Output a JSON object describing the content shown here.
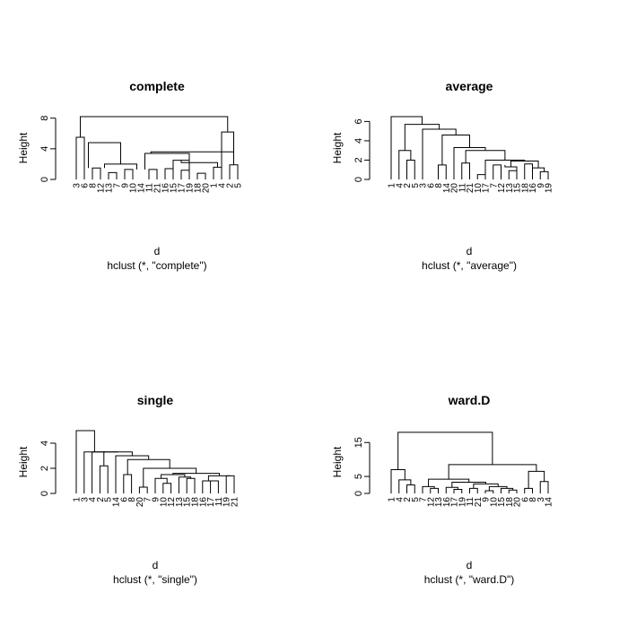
{
  "chart_data": [
    {
      "type": "dendrogram",
      "title": "complete",
      "ylabel": "Height",
      "xlabel": "d",
      "sub": "hclust (*, \"complete\")",
      "ylim": [
        0,
        8.2
      ],
      "yticks": [
        0,
        4,
        8
      ],
      "leaves": [
        "3",
        "6",
        "8",
        "12",
        "13",
        "7",
        "9",
        "10",
        "14",
        "11",
        "21",
        "16",
        "15",
        "17",
        "19",
        "18",
        "20",
        "1",
        "4",
        "2",
        "5"
      ],
      "merges": [
        [
          [
            0,
            0
          ],
          [
            1,
            0
          ],
          5.5
        ],
        [
          [
            2,
            0
          ],
          [
            3,
            0
          ],
          1.5
        ],
        [
          [
            4,
            0
          ],
          [
            5,
            0
          ],
          0.9
        ],
        [
          [
            6,
            0
          ],
          [
            7,
            0
          ],
          1.3
        ],
        [
          [
            9,
            0
          ],
          [
            10,
            0
          ],
          1.3
        ],
        [
          [
            11,
            0
          ],
          [
            12,
            0
          ],
          1.4
        ],
        [
          [
            13,
            0
          ],
          [
            14,
            0
          ],
          1.2
        ],
        [
          [
            15,
            0
          ],
          [
            16,
            0
          ],
          0.8
        ],
        [
          [
            17,
            0
          ],
          [
            18,
            0
          ],
          1.6
        ],
        [
          [
            19,
            0
          ],
          [
            20,
            0
          ],
          1.9
        ],
        [
          [
            3.5,
            1.5
          ],
          [
            7.5,
            1.3
          ],
          2.0
        ],
        [
          [
            1.5,
            1.5
          ],
          [
            5.5,
            2.0
          ],
          4.8
        ],
        [
          [
            8.5,
            1.3
          ],
          [
            14.0,
            1.2
          ],
          3.4
        ],
        [
          [
            12.0,
            1.4
          ],
          [
            14.0,
            1.2
          ],
          2.5
        ],
        [
          [
            13.0,
            2.5
          ],
          [
            17.5,
            1.6
          ],
          2.2
        ],
        [
          [
            9.25,
            3.4
          ],
          [
            19.5,
            1.9
          ],
          3.6
        ],
        [
          [
            18.0,
            0
          ],
          [
            19.5,
            3.6
          ],
          6.2
        ],
        [
          [
            0.5,
            5.5
          ],
          [
            18.75,
            6.2
          ],
          8.2
        ]
      ]
    },
    {
      "type": "dendrogram",
      "title": "average",
      "ylabel": "Height",
      "xlabel": "d",
      "sub": "hclust (*, \"average\")",
      "ylim": [
        0,
        6.5
      ],
      "yticks": [
        0,
        2,
        4,
        6
      ],
      "leaves": [
        "1",
        "4",
        "2",
        "5",
        "3",
        "6",
        "8",
        "14",
        "20",
        "11",
        "21",
        "10",
        "17",
        "7",
        "12",
        "13",
        "15",
        "18",
        "16",
        "9",
        "19"
      ],
      "merges": [
        [
          [
            2,
            0
          ],
          [
            3,
            0
          ],
          2.0
        ],
        [
          [
            6,
            0
          ],
          [
            7,
            0
          ],
          1.5
        ],
        [
          [
            9,
            0
          ],
          [
            10,
            0
          ],
          1.7
        ],
        [
          [
            11,
            0
          ],
          [
            12,
            0
          ],
          0.5
        ],
        [
          [
            13,
            0
          ],
          [
            14,
            0
          ],
          1.5
        ],
        [
          [
            15,
            0
          ],
          [
            16,
            0
          ],
          0.9
        ],
        [
          [
            17,
            0
          ],
          [
            18,
            0
          ],
          1.6
        ],
        [
          [
            19,
            0
          ],
          [
            20,
            0
          ],
          0.8
        ],
        [
          [
            1,
            0
          ],
          [
            2.5,
            2.0
          ],
          3.0
        ],
        [
          [
            18,
            1.6
          ],
          [
            19.5,
            0.8
          ],
          1.2
        ],
        [
          [
            14.5,
            1.5
          ],
          [
            16.0,
            0.9
          ],
          1.3
        ],
        [
          [
            15.25,
            1.3
          ],
          [
            18.75,
            1.2
          ],
          1.9
        ],
        [
          [
            12,
            0.5
          ],
          [
            17.0,
            1.9
          ],
          2.0
        ],
        [
          [
            9.5,
            1.7
          ],
          [
            14.5,
            2.0
          ],
          3.0
        ],
        [
          [
            8,
            0
          ],
          [
            12.0,
            3.0
          ],
          3.3
        ],
        [
          [
            6.5,
            1.5
          ],
          [
            10.0,
            3.3
          ],
          4.6
        ],
        [
          [
            4,
            0
          ],
          [
            8.25,
            4.6
          ],
          5.2
        ],
        [
          [
            1.75,
            3.0
          ],
          [
            6.125,
            5.2
          ],
          5.7
        ],
        [
          [
            0,
            0
          ],
          [
            3.9375,
            5.7
          ],
          6.5
        ]
      ]
    },
    {
      "type": "dendrogram",
      "title": "single",
      "ylabel": "Height",
      "xlabel": "d",
      "sub": "hclust (*, \"single\")",
      "ylim": [
        0,
        5.0
      ],
      "yticks": [
        0,
        2,
        4
      ],
      "leaves": [
        "1",
        "3",
        "4",
        "2",
        "5",
        "14",
        "6",
        "8",
        "20",
        "7",
        "9",
        "10",
        "12",
        "13",
        "15",
        "18",
        "16",
        "17",
        "11",
        "19",
        "21"
      ],
      "merges": [
        [
          [
            3,
            0
          ],
          [
            4,
            0
          ],
          2.2
        ],
        [
          [
            6,
            0
          ],
          [
            7,
            0
          ],
          1.5
        ],
        [
          [
            8,
            0
          ],
          [
            9,
            0
          ],
          0.5
        ],
        [
          [
            11,
            0
          ],
          [
            12,
            0
          ],
          0.8
        ],
        [
          [
            17,
            0
          ],
          [
            18,
            0
          ],
          1.0
        ],
        [
          [
            16,
            0
          ],
          [
            17.5,
            1.0
          ],
          1.0
        ],
        [
          [
            14,
            0
          ],
          [
            15,
            0
          ],
          1.2
        ],
        [
          [
            10,
            0
          ],
          [
            11.5,
            0.8
          ],
          1.2
        ],
        [
          [
            13,
            0
          ],
          [
            14.5,
            1.2
          ],
          1.3
        ],
        [
          [
            10.75,
            1.2
          ],
          [
            13.75,
            1.3
          ],
          1.5
        ],
        [
          [
            19,
            0
          ],
          [
            20,
            0
          ],
          1.4
        ],
        [
          [
            16.75,
            1.0
          ],
          [
            19.5,
            1.4
          ],
          1.4
        ],
        [
          [
            12.25,
            1.5
          ],
          [
            18.125,
            1.4
          ],
          1.6
        ],
        [
          [
            8.5,
            0.5
          ],
          [
            15.1875,
            1.6
          ],
          2.0
        ],
        [
          [
            6.5,
            1.5
          ],
          [
            11.84,
            2.0
          ],
          2.7
        ],
        [
          [
            5,
            0
          ],
          [
            9.17,
            2.7
          ],
          3.0
        ],
        [
          [
            3.5,
            2.2
          ],
          [
            7.09,
            3.0
          ],
          3.3
        ],
        [
          [
            2,
            0
          ],
          [
            5.29,
            3.3
          ],
          3.3
        ],
        [
          [
            1,
            0
          ],
          [
            3.65,
            3.3
          ],
          3.3
        ],
        [
          [
            0,
            0
          ],
          [
            2.32,
            3.3
          ],
          5.0
        ]
      ]
    },
    {
      "type": "dendrogram",
      "title": "ward.D",
      "ylabel": "Height",
      "xlabel": "d",
      "sub": "hclust (*, \"ward.D\")",
      "ylim": [
        0,
        18.5
      ],
      "yticks": [
        0,
        5,
        15
      ],
      "leaves": [
        "1",
        "4",
        "2",
        "5",
        "7",
        "12",
        "13",
        "16",
        "17",
        "19",
        "11",
        "21",
        "9",
        "10",
        "15",
        "18",
        "20",
        "6",
        "8",
        "3",
        "14"
      ],
      "merges": [
        [
          [
            2,
            0
          ],
          [
            3,
            0
          ],
          2.5
        ],
        [
          [
            1,
            0
          ],
          [
            2.5,
            2.5
          ],
          4.0
        ],
        [
          [
            0,
            0
          ],
          [
            1.75,
            4.0
          ],
          7.0
        ],
        [
          [
            5,
            0
          ],
          [
            6,
            0
          ],
          1.5
        ],
        [
          [
            8,
            0
          ],
          [
            9,
            0
          ],
          1.2
        ],
        [
          [
            7,
            0
          ],
          [
            8.5,
            1.2
          ],
          1.8
        ],
        [
          [
            10,
            0
          ],
          [
            11,
            0
          ],
          1.5
        ],
        [
          [
            12,
            0
          ],
          [
            13,
            0
          ],
          0.8
        ],
        [
          [
            15,
            0
          ],
          [
            16,
            0
          ],
          1.0
        ],
        [
          [
            14,
            0
          ],
          [
            15.5,
            1.0
          ],
          1.5
        ],
        [
          [
            12.5,
            0.8
          ],
          [
            14.75,
            1.5
          ],
          2.0
        ],
        [
          [
            10.5,
            1.5
          ],
          [
            13.625,
            2.0
          ],
          2.8
        ],
        [
          [
            7.75,
            1.8
          ],
          [
            12.06,
            2.8
          ],
          3.3
        ],
        [
          [
            4,
            0
          ],
          [
            5.5,
            1.5
          ],
          2.0
        ],
        [
          [
            4.75,
            2.0
          ],
          [
            9.91,
            3.3
          ],
          4.2
        ],
        [
          [
            17,
            0
          ],
          [
            18,
            0
          ],
          1.5
        ],
        [
          [
            19,
            0
          ],
          [
            20,
            0
          ],
          3.5
        ],
        [
          [
            17.5,
            1.5
          ],
          [
            19.5,
            3.5
          ],
          6.5
        ],
        [
          [
            7.33,
            4.2
          ],
          [
            18.5,
            6.5
          ],
          8.5
        ],
        [
          [
            0.875,
            7.0
          ],
          [
            12.9,
            8.5
          ],
          18.0
        ]
      ]
    }
  ]
}
